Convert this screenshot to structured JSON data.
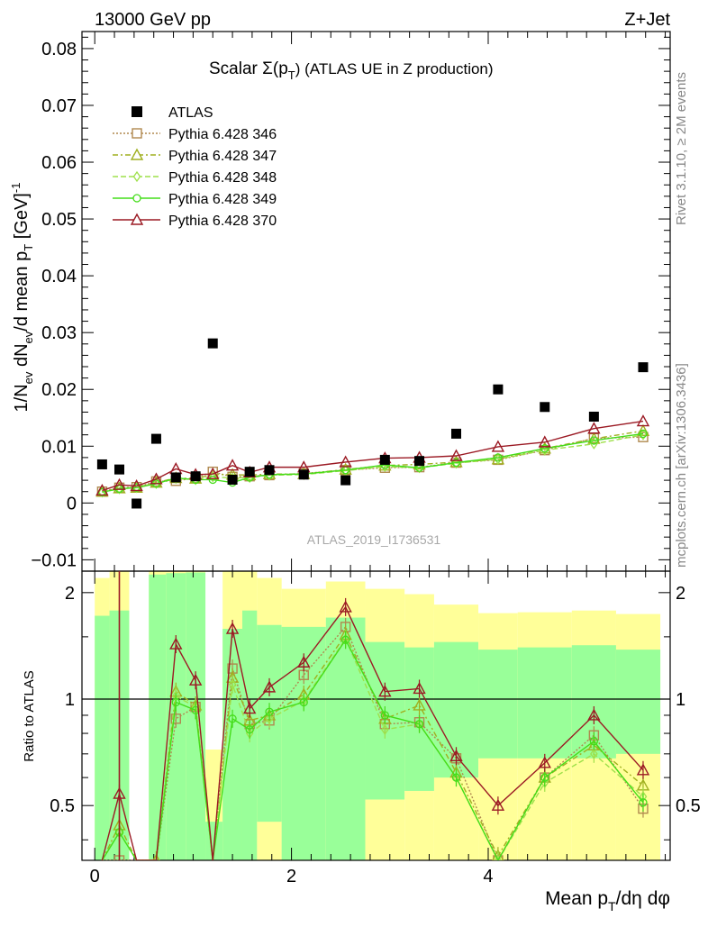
{
  "header": {
    "left": "13000 GeV pp",
    "right": "Z+Jet"
  },
  "side_labels": {
    "rivet": "Rivet 3.1.10, ≥ 2M events",
    "mcplots": "mcplots.cern.ch [arXiv:1306.3436]"
  },
  "watermark": "ATLAS_2019_I1736531",
  "chart_data": [
    {
      "type": "scatter",
      "panel": "main",
      "title": "Scalar Σ(p_T) (ATLAS UE in Z production)",
      "title_main": "Scalar Σ(p",
      "title_sub": "T",
      "title_tail": ") (ATLAS UE in Z production)",
      "ylabel": "1/N_ev dN_ev/d mean p_T [GeV]^-1",
      "ylim": [
        -0.012,
        0.083
      ],
      "yticks": [
        -0.01,
        0,
        0.01,
        0.02,
        0.03,
        0.04,
        0.05,
        0.06,
        0.07,
        0.08
      ],
      "ytick_labels": [
        "−0.01",
        "0",
        "0.01",
        "0.02",
        "0.03",
        "0.04",
        "0.05",
        "0.06",
        "0.07",
        "0.08"
      ],
      "xlim": [
        -0.13,
        5.85
      ],
      "legend_position": "top-left",
      "x": [
        0.075,
        0.25,
        0.425,
        0.625,
        0.825,
        1.025,
        1.2,
        1.4,
        1.575,
        1.775,
        2.125,
        2.55,
        2.95,
        3.3,
        3.675,
        4.1,
        4.575,
        5.075,
        5.575
      ],
      "data": {
        "name": "ATLAS",
        "y": [
          0.0068,
          0.0059,
          -0.0001,
          0.0113,
          0.0045,
          0.0047,
          0.0281,
          0.0041,
          0.0055,
          0.0058,
          0.005,
          0.004,
          0.0076,
          0.0074,
          0.0122,
          0.02,
          0.0169,
          0.0152,
          0.0239
        ]
      },
      "series": [
        {
          "name": "Pythia 6.428 346",
          "color": "#b0894f",
          "marker": "square",
          "dash": "2,2",
          "y": [
            0.002,
            0.0027,
            0.0028,
            0.0038,
            0.0039,
            0.0044,
            0.0055,
            0.0046,
            0.0047,
            0.0049,
            0.0052,
            0.0058,
            0.0062,
            0.0063,
            0.0071,
            0.0076,
            0.0093,
            0.0114,
            0.0116
          ]
        },
        {
          "name": "Pythia 6.428 347",
          "color": "#a0b020",
          "marker": "triangle",
          "dash": "6,3,2,3",
          "y": [
            0.002,
            0.0026,
            0.0027,
            0.0036,
            0.0044,
            0.0043,
            0.005,
            0.005,
            0.0049,
            0.0051,
            0.0051,
            0.0059,
            0.0066,
            0.0068,
            0.0072,
            0.0077,
            0.0096,
            0.0113,
            0.0127
          ]
        },
        {
          "name": "Pythia 6.428 348",
          "color": "#9ee04a",
          "marker": "diamond",
          "dash": "6,3",
          "y": [
            0.0019,
            0.0025,
            0.0027,
            0.0034,
            0.0043,
            0.0041,
            0.0046,
            0.0044,
            0.0045,
            0.0049,
            0.005,
            0.0057,
            0.0064,
            0.0062,
            0.007,
            0.0077,
            0.0093,
            0.0104,
            0.012
          ]
        },
        {
          "name": "Pythia 6.428 349",
          "color": "#44dd1a",
          "marker": "circle",
          "dash": "",
          "y": [
            0.0019,
            0.0025,
            0.0027,
            0.0034,
            0.0044,
            0.0041,
            0.0041,
            0.0036,
            0.0045,
            0.005,
            0.0051,
            0.0058,
            0.0067,
            0.0062,
            0.0071,
            0.008,
            0.0096,
            0.011,
            0.0122
          ]
        },
        {
          "name": "Pythia 6.428 370",
          "color": "#9b1a24",
          "marker": "triangle",
          "dash": "",
          "y": [
            0.0022,
            0.0032,
            0.003,
            0.0042,
            0.006,
            0.005,
            0.0051,
            0.0066,
            0.0054,
            0.0063,
            0.0063,
            0.0072,
            0.0079,
            0.008,
            0.0083,
            0.0099,
            0.0107,
            0.0131,
            0.0144
          ]
        }
      ]
    },
    {
      "type": "line",
      "panel": "ratio",
      "ylabel": "Ratio to ATLAS",
      "xlabel": "Mean p_T/dη dφ",
      "xlabel_main": "Mean p",
      "xlabel_sub": "T",
      "xlabel_tail": "/dη dφ",
      "ylim": [
        0.35,
        2.3
      ],
      "yticks": [
        0.5,
        1,
        2
      ],
      "ytick_labels": [
        "0.5",
        "1",
        "2"
      ],
      "xlim": [
        -0.13,
        5.85
      ],
      "xticks": [
        0,
        2,
        4
      ],
      "xtick_labels": [
        "0",
        "2",
        "4"
      ],
      "reference_line": 1,
      "bands": [
        {
          "x0": 0.0,
          "x1": 0.15,
          "g_lo": 0.35,
          "g_hi": 1.72,
          "y_lo": 0.35,
          "y_hi": 2.2
        },
        {
          "x0": 0.15,
          "x1": 0.35,
          "g_lo": 0.35,
          "g_hi": 1.78,
          "y_lo": 0.35,
          "y_hi": 2.3
        },
        {
          "x0": 0.55,
          "x1": 0.725,
          "g_lo": 0.35,
          "g_hi": 2.25,
          "y_lo": 0.35,
          "y_hi": 2.3
        },
        {
          "x0": 0.725,
          "x1": 0.925,
          "g_lo": 0.35,
          "g_hi": 2.27,
          "y_lo": 0.35,
          "y_hi": 2.3
        },
        {
          "x0": 0.925,
          "x1": 1.125,
          "g_lo": 0.35,
          "g_hi": 2.28,
          "y_lo": 0.35,
          "y_hi": 2.3
        },
        {
          "x0": 1.125,
          "x1": 1.3,
          "g_lo": 0.35,
          "g_hi": 0.45,
          "y_lo": 0.35,
          "y_hi": 0.72
        },
        {
          "x0": 1.3,
          "x1": 1.5,
          "g_lo": 0.35,
          "g_hi": 1.58,
          "y_lo": 0.35,
          "y_hi": 2.3
        },
        {
          "x0": 1.5,
          "x1": 1.65,
          "g_lo": 0.35,
          "g_hi": 1.78,
          "y_lo": 0.35,
          "y_hi": 2.3
        },
        {
          "x0": 1.65,
          "x1": 1.9,
          "g_lo": 0.45,
          "g_hi": 1.62,
          "y_lo": 0.35,
          "y_hi": 2.2
        },
        {
          "x0": 1.9,
          "x1": 2.35,
          "g_lo": 0.35,
          "g_hi": 1.6,
          "y_lo": 0.35,
          "y_hi": 2.05
        },
        {
          "x0": 2.35,
          "x1": 2.75,
          "g_lo": 0.35,
          "g_hi": 1.7,
          "y_lo": 0.35,
          "y_hi": 2.15
        },
        {
          "x0": 2.75,
          "x1": 3.15,
          "g_lo": 0.52,
          "g_hi": 1.45,
          "y_lo": 0.35,
          "y_hi": 2.05
        },
        {
          "x0": 3.15,
          "x1": 3.45,
          "g_lo": 0.55,
          "g_hi": 1.4,
          "y_lo": 0.35,
          "y_hi": 1.98
        },
        {
          "x0": 3.45,
          "x1": 3.9,
          "g_lo": 0.6,
          "g_hi": 1.45,
          "y_lo": 0.35,
          "y_hi": 1.85
        },
        {
          "x0": 3.9,
          "x1": 4.3,
          "g_lo": 0.68,
          "g_hi": 1.38,
          "y_lo": 0.35,
          "y_hi": 1.75
        },
        {
          "x0": 4.3,
          "x1": 4.85,
          "g_lo": 0.68,
          "g_hi": 1.4,
          "y_lo": 0.35,
          "y_hi": 1.76
        },
        {
          "x0": 4.85,
          "x1": 5.3,
          "g_lo": 0.68,
          "g_hi": 1.42,
          "y_lo": 0.35,
          "y_hi": 1.78
        },
        {
          "x0": 5.3,
          "x1": 5.75,
          "g_lo": 0.7,
          "g_hi": 1.38,
          "y_lo": 0.35,
          "y_hi": 1.74
        }
      ],
      "series": [
        {
          "name": "Pythia 6.428 346",
          "color": "#b0894f",
          "marker": "square",
          "dash": "2,2",
          "y": [
            0.3,
            0.35,
            0.3,
            0.3,
            0.88,
            0.95,
            0.2,
            1.22,
            0.85,
            0.87,
            1.17,
            1.6,
            0.85,
            0.86,
            0.68,
            0.35,
            0.6,
            0.79,
            0.49
          ]
        },
        {
          "name": "Pythia 6.428 347",
          "color": "#a0b020",
          "marker": "triangle",
          "dash": "6,3,2,3",
          "y": [
            0.3,
            0.44,
            0.3,
            0.35,
            1.05,
            0.96,
            0.2,
            1.15,
            0.87,
            0.9,
            1.03,
            1.52,
            0.88,
            0.96,
            0.62,
            0.36,
            0.6,
            0.74,
            0.57
          ]
        },
        {
          "name": "Pythia 6.428 348",
          "color": "#9ee04a",
          "marker": "diamond",
          "dash": "6,3",
          "y": [
            0.3,
            0.42,
            0.3,
            0.3,
            1.02,
            0.95,
            0.2,
            1.1,
            0.8,
            0.88,
            0.99,
            1.48,
            0.82,
            0.85,
            0.6,
            0.35,
            0.58,
            0.7,
            0.53
          ]
        },
        {
          "name": "Pythia 6.428 349",
          "color": "#44dd1a",
          "marker": "circle",
          "dash": "",
          "y": [
            0.3,
            0.42,
            0.3,
            0.3,
            0.98,
            0.93,
            0.2,
            0.88,
            0.82,
            0.92,
            0.98,
            1.47,
            0.9,
            0.85,
            0.6,
            0.34,
            0.6,
            0.76,
            0.51
          ]
        },
        {
          "name": "Pythia 6.428 370",
          "color": "#9b1a24",
          "marker": "triangle",
          "dash": "",
          "y": [
            0.3,
            0.54,
            0.3,
            0.3,
            1.43,
            1.13,
            0.2,
            1.58,
            0.94,
            1.08,
            1.27,
            1.82,
            1.05,
            1.07,
            0.69,
            0.5,
            0.66,
            0.9,
            0.63
          ]
        }
      ]
    }
  ]
}
